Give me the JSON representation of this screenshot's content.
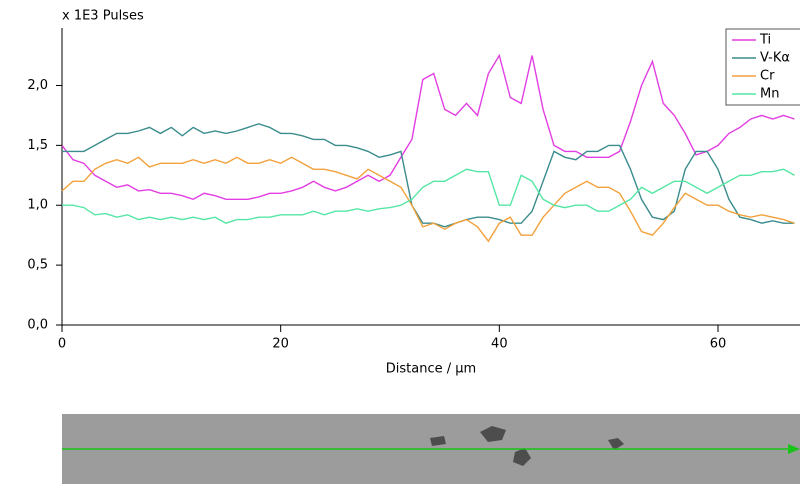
{
  "chart_data": {
    "type": "line",
    "y_label": "x 1E3 Pulses",
    "x_label": "Distance / µm",
    "x": [
      0,
      1,
      2,
      3,
      4,
      5,
      6,
      7,
      8,
      9,
      10,
      11,
      12,
      13,
      14,
      15,
      16,
      17,
      18,
      19,
      20,
      21,
      22,
      23,
      24,
      25,
      26,
      27,
      28,
      29,
      30,
      31,
      32,
      33,
      34,
      35,
      36,
      37,
      38,
      39,
      40,
      41,
      42,
      43,
      44,
      45,
      46,
      47,
      48,
      49,
      50,
      51,
      52,
      53,
      54,
      55,
      56,
      57,
      58,
      59,
      60,
      61,
      62,
      63,
      64,
      65,
      66,
      67
    ],
    "series": [
      {
        "name": "Ti",
        "color": "#e33ee3",
        "values": [
          1.5,
          1.38,
          1.35,
          1.25,
          1.2,
          1.15,
          1.17,
          1.12,
          1.13,
          1.1,
          1.1,
          1.08,
          1.05,
          1.1,
          1.08,
          1.05,
          1.05,
          1.05,
          1.07,
          1.1,
          1.1,
          1.12,
          1.15,
          1.2,
          1.15,
          1.12,
          1.15,
          1.2,
          1.25,
          1.2,
          1.25,
          1.4,
          1.55,
          2.05,
          2.1,
          1.8,
          1.75,
          1.85,
          1.75,
          2.1,
          2.25,
          1.9,
          1.85,
          2.25,
          1.8,
          1.5,
          1.45,
          1.45,
          1.4,
          1.4,
          1.4,
          1.45,
          1.7,
          2.0,
          2.2,
          1.85,
          1.75,
          1.6,
          1.42,
          1.45,
          1.5,
          1.6,
          1.65,
          1.72,
          1.75,
          1.72,
          1.75,
          1.72
        ]
      },
      {
        "name": "V-Kα",
        "color": "#3b8c8c",
        "values": [
          1.45,
          1.45,
          1.45,
          1.5,
          1.55,
          1.6,
          1.6,
          1.62,
          1.65,
          1.6,
          1.65,
          1.58,
          1.65,
          1.6,
          1.62,
          1.6,
          1.62,
          1.65,
          1.68,
          1.65,
          1.6,
          1.6,
          1.58,
          1.55,
          1.55,
          1.5,
          1.5,
          1.48,
          1.45,
          1.4,
          1.42,
          1.45,
          1.0,
          0.85,
          0.85,
          0.82,
          0.85,
          0.88,
          0.9,
          0.9,
          0.88,
          0.85,
          0.85,
          0.95,
          1.2,
          1.45,
          1.4,
          1.38,
          1.45,
          1.45,
          1.5,
          1.5,
          1.3,
          1.05,
          0.9,
          0.88,
          0.95,
          1.3,
          1.45,
          1.45,
          1.3,
          1.05,
          0.9,
          0.88,
          0.85,
          0.87,
          0.85,
          0.85
        ]
      },
      {
        "name": "Cr",
        "color": "#f2a13c",
        "values": [
          1.12,
          1.2,
          1.2,
          1.3,
          1.35,
          1.38,
          1.35,
          1.4,
          1.32,
          1.35,
          1.35,
          1.35,
          1.38,
          1.35,
          1.38,
          1.35,
          1.4,
          1.35,
          1.35,
          1.38,
          1.35,
          1.4,
          1.35,
          1.3,
          1.3,
          1.28,
          1.25,
          1.22,
          1.3,
          1.25,
          1.2,
          1.15,
          1.0,
          0.82,
          0.85,
          0.8,
          0.85,
          0.88,
          0.82,
          0.7,
          0.85,
          0.9,
          0.75,
          0.75,
          0.9,
          1.0,
          1.1,
          1.15,
          1.2,
          1.15,
          1.15,
          1.1,
          0.95,
          0.78,
          0.75,
          0.85,
          0.98,
          1.1,
          1.05,
          1.0,
          1.0,
          0.95,
          0.92,
          0.9,
          0.92,
          0.9,
          0.88,
          0.85
        ]
      },
      {
        "name": "Mn",
        "color": "#55e6a5",
        "values": [
          1.0,
          1.0,
          0.98,
          0.92,
          0.93,
          0.9,
          0.92,
          0.88,
          0.9,
          0.88,
          0.9,
          0.88,
          0.9,
          0.88,
          0.9,
          0.85,
          0.88,
          0.88,
          0.9,
          0.9,
          0.92,
          0.92,
          0.92,
          0.95,
          0.92,
          0.95,
          0.95,
          0.97,
          0.95,
          0.97,
          0.98,
          1.0,
          1.05,
          1.15,
          1.2,
          1.2,
          1.25,
          1.3,
          1.28,
          1.28,
          1.0,
          1.0,
          1.25,
          1.2,
          1.05,
          1.0,
          0.98,
          1.0,
          1.0,
          0.95,
          0.95,
          1.0,
          1.05,
          1.15,
          1.1,
          1.15,
          1.2,
          1.2,
          1.15,
          1.1,
          1.15,
          1.2,
          1.25,
          1.25,
          1.28,
          1.28,
          1.3,
          1.25
        ]
      }
    ],
    "xlim": [
      0,
      67.5
    ],
    "ylim": [
      0,
      2.48
    ],
    "xticks": [
      0,
      20,
      40,
      60
    ],
    "yticks": [
      {
        "value": 0,
        "label": "0,0"
      },
      {
        "value": 0.5,
        "label": "0,5"
      },
      {
        "value": 1,
        "label": "1,0"
      },
      {
        "value": 1.5,
        "label": "1,5"
      },
      {
        "value": 2,
        "label": "2,0"
      }
    ],
    "grid": false,
    "legend": "top-right"
  }
}
